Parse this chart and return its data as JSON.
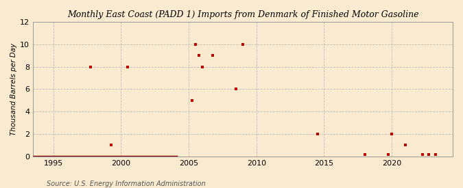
{
  "title": "Monthly East Coast (PADD 1) Imports from Denmark of Finished Motor Gasoline",
  "ylabel": "Thousand Barrels per Day",
  "source": "Source: U.S. Energy Information Administration",
  "background_color": "#faebd0",
  "marker_color": "#bb0000",
  "xlim": [
    1993.5,
    2024.5
  ],
  "ylim": [
    0,
    12
  ],
  "yticks": [
    0,
    2,
    4,
    6,
    8,
    10,
    12
  ],
  "xticks": [
    1995,
    2000,
    2005,
    2010,
    2015,
    2020
  ],
  "data_points": [
    [
      1997.75,
      8
    ],
    [
      1999.25,
      1
    ],
    [
      2000.5,
      8
    ],
    [
      2005.25,
      5
    ],
    [
      2005.5,
      10
    ],
    [
      2005.75,
      9
    ],
    [
      2006.0,
      8
    ],
    [
      2006.75,
      9
    ],
    [
      2008.5,
      6
    ],
    [
      2009.0,
      10
    ],
    [
      2014.5,
      2
    ],
    [
      2018.0,
      0.15
    ],
    [
      2019.75,
      0.15
    ],
    [
      2020.0,
      2
    ],
    [
      2021.0,
      1
    ],
    [
      2022.25,
      0.15
    ],
    [
      2022.75,
      0.15
    ],
    [
      2023.25,
      0.15
    ]
  ],
  "zero_line_start": 1993.5,
  "zero_line_end": 2004.2,
  "grid_color": "#bbbbbb",
  "spine_color": "#999999"
}
